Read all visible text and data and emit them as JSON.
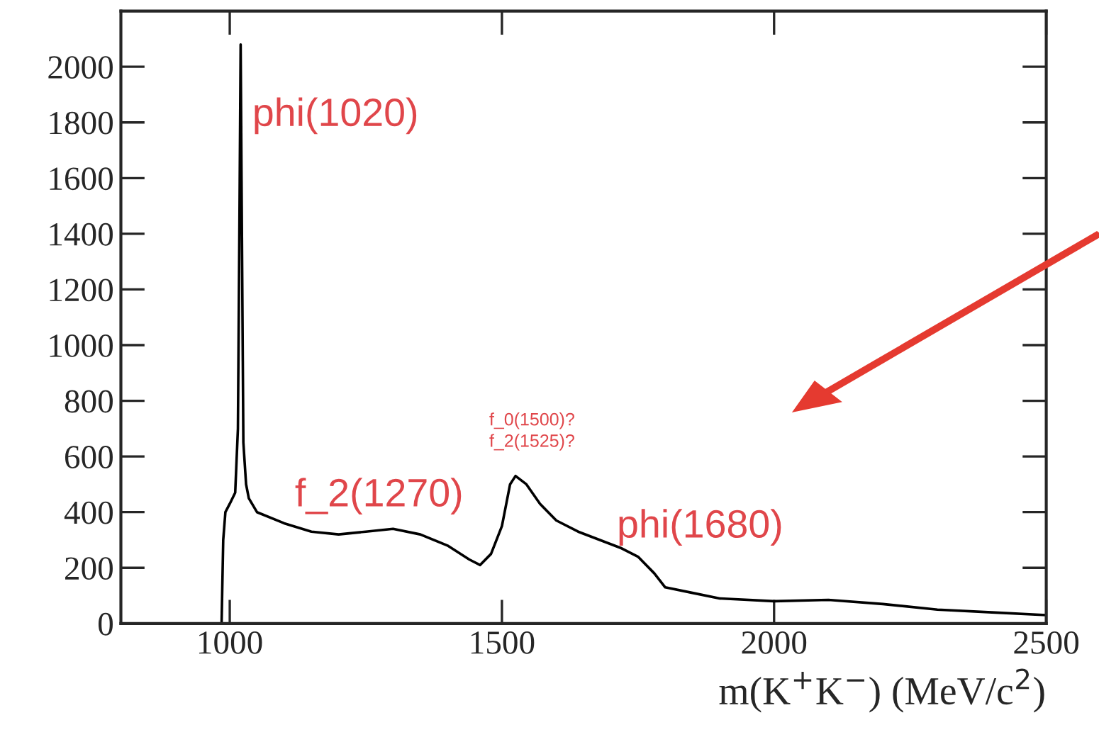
{
  "chart_data": {
    "type": "line",
    "xlabel": "m(K$^{+}$K$^{−}$) (MeV/c$^{2}$)",
    "x": [
      800,
      985,
      988,
      992,
      1000,
      1010,
      1015,
      1018,
      1020,
      1022,
      1025,
      1030,
      1035,
      1050,
      1100,
      1150,
      1200,
      1250,
      1300,
      1350,
      1400,
      1440,
      1460,
      1480,
      1500,
      1515,
      1525,
      1545,
      1570,
      1600,
      1640,
      1680,
      1720,
      1750,
      1780,
      1800,
      1850,
      1900,
      2000,
      2100,
      2200,
      2300,
      2400,
      2500
    ],
    "series": [
      {
        "color": "#000000",
        "values": [
          0,
          0,
          300,
          400,
          430,
          470,
          700,
          1500,
          2080,
          1500,
          650,
          500,
          450,
          400,
          360,
          330,
          320,
          330,
          340,
          320,
          280,
          230,
          210,
          250,
          350,
          500,
          530,
          500,
          430,
          370,
          330,
          300,
          270,
          240,
          180,
          130,
          110,
          90,
          80,
          85,
          70,
          50,
          40,
          30
        ]
      }
    ],
    "xlim": [
      800,
      2500
    ],
    "xticks": [
      1000,
      1500,
      2000,
      2500
    ],
    "ylim": [
      0,
      2200
    ],
    "yticks": [
      0,
      200,
      400,
      600,
      800,
      1000,
      1200,
      1400,
      1600,
      1800,
      2000
    ],
    "grid": false,
    "legend": false,
    "marker": "none",
    "line_style": "solid",
    "annotations": [
      "phi(1020)",
      "f_2(1270)",
      "f_0(1500)?",
      "f_2(1525)?",
      "phi(1680)"
    ]
  }
}
